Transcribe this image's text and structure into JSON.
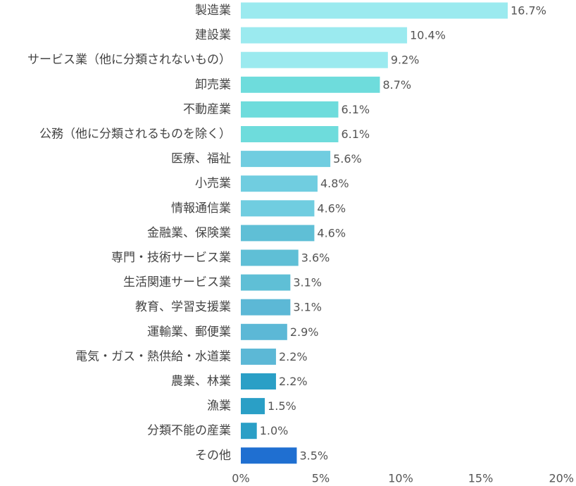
{
  "chart_data": {
    "type": "bar",
    "orientation": "horizontal",
    "categories": [
      "製造業",
      "建設業",
      "サービス業（他に分類されないもの）",
      "卸売業",
      "不動産業",
      "公務（他に分類されるものを除く）",
      "医療、福祉",
      "小売業",
      "情報通信業",
      "金融業、保険業",
      "専門・技術サービス業",
      "生活関連サービス業",
      "教育、学習支援業",
      "運輸業、郵便業",
      "電気・ガス・熱供給・水道業",
      "農業、林業",
      "漁業",
      "分類不能の産業",
      "その他"
    ],
    "values": [
      16.7,
      10.4,
      9.2,
      8.7,
      6.1,
      6.1,
      5.6,
      4.8,
      4.6,
      4.6,
      3.6,
      3.1,
      3.1,
      2.9,
      2.2,
      2.2,
      1.5,
      1.0,
      3.5
    ],
    "value_labels": [
      "16.7%",
      "10.4%",
      "9.2%",
      "8.7%",
      "6.1%",
      "6.1%",
      "5.6%",
      "4.8%",
      "4.6%",
      "4.6%",
      "3.6%",
      "3.1%",
      "3.1%",
      "2.9%",
      "2.2%",
      "2.2%",
      "1.5%",
      "1.0%",
      "3.5%"
    ],
    "colors": [
      "#9beaef",
      "#9beaef",
      "#9beaef",
      "#6edcdc",
      "#6edcdc",
      "#6edcdc",
      "#70cde0",
      "#70cde0",
      "#70cde0",
      "#5fbfd6",
      "#5fbfd6",
      "#5fbfd6",
      "#5cb8d6",
      "#5cb8d6",
      "#5cb8d6",
      "#2a9fc6",
      "#2a9fc6",
      "#2a9fc6",
      "#1f6fd1"
    ],
    "xlim": [
      0,
      20
    ],
    "xticks": [
      0,
      5,
      10,
      15,
      20
    ],
    "xtick_labels": [
      "0%",
      "5%",
      "10%",
      "15%",
      "20%"
    ],
    "grid": false,
    "legend": "none"
  }
}
